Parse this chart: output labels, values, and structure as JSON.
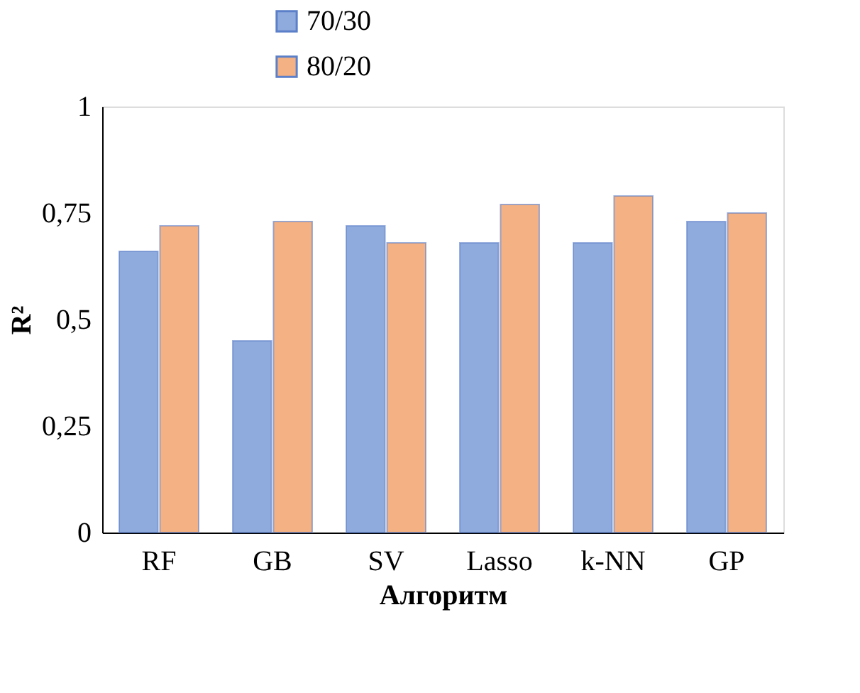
{
  "chart_data": {
    "type": "bar",
    "xlabel": "Алгоритм",
    "ylabel": "R²",
    "categories": [
      "RF",
      "GB",
      "SV",
      "Lasso",
      "k-NN",
      "GP"
    ],
    "series": [
      {
        "name": "70/30",
        "color": "#8faadc",
        "values": [
          0.66,
          0.45,
          0.72,
          0.68,
          0.68,
          0.73
        ]
      },
      {
        "name": "80/20",
        "color": "#f4b183",
        "values": [
          0.72,
          0.73,
          0.68,
          0.77,
          0.79,
          0.75
        ]
      }
    ],
    "ylim": [
      0,
      1
    ],
    "yticks": [
      0,
      {
        "value": 0.25,
        "label": "0,25"
      },
      {
        "value": 0.5,
        "label": "0,5"
      },
      {
        "value": 0.75,
        "label": "0,75"
      },
      1
    ],
    "grid": false,
    "legend": "top"
  }
}
